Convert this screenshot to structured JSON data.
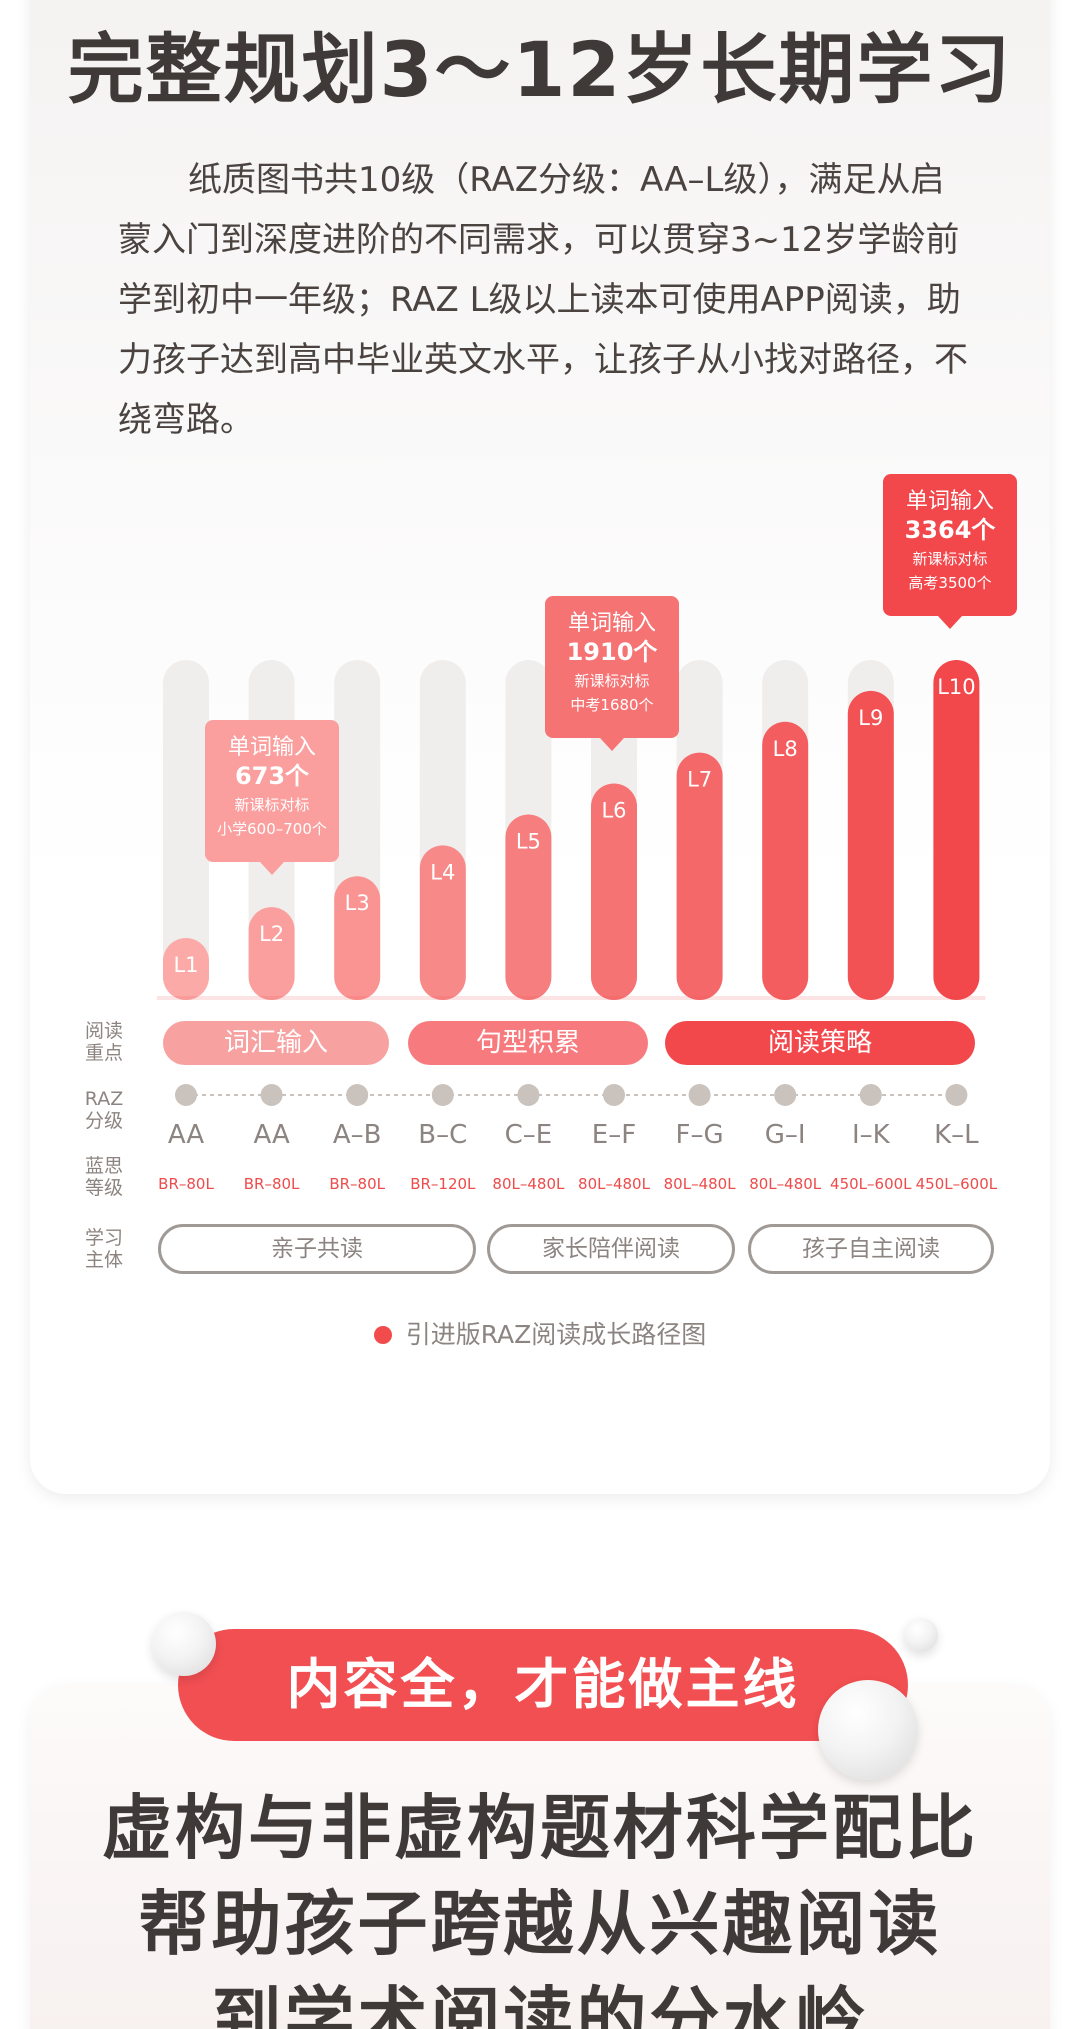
{
  "title": "完整规划3～12岁长期学习",
  "intro": "纸质图书共10级（RAZ分级：AA–L级），满足从启蒙入门到深度进阶的不同需求，可以贯穿3~12岁学龄前学到初中一年级；RAZ L级以上读本可使用APP阅读，助力孩子达到高中毕业英文水平，让孩子从小找对路径，不绕弯路。",
  "row_labels": {
    "focus": "阅读\n重点",
    "raz": "RAZ\n分级",
    "lexile": "蓝思\n等级",
    "subject": "学习\n主体"
  },
  "chart_data": {
    "type": "bar",
    "categories": [
      "L1",
      "L2",
      "L3",
      "L4",
      "L5",
      "L6",
      "L7",
      "L8",
      "L9",
      "L10"
    ],
    "values": [
      1,
      2,
      3,
      4,
      5,
      6,
      7,
      8,
      9,
      10
    ],
    "ylim": [
      0,
      10
    ],
    "raz_levels": [
      "AA",
      "AA",
      "A–B",
      "B–C",
      "C–E",
      "E–F",
      "F–G",
      "G–I",
      "I–K",
      "K–L"
    ],
    "lexile": [
      "BR–80L",
      "BR–80L",
      "BR–80L",
      "BR–120L",
      "80L–480L",
      "80L–480L",
      "80L–480L",
      "80L–480L",
      "450L–600L",
      "450L–600L"
    ],
    "callouts": [
      {
        "level": "L2",
        "line1": "单词输入",
        "line2": "673个",
        "line3": "新课标对标",
        "line4": "小学600–700个"
      },
      {
        "level": "L6",
        "line1": "单词输入",
        "line2": "1910个",
        "line3": "新课标对标",
        "line4": "中考1680个"
      },
      {
        "level": "L10",
        "line1": "单词输入",
        "line2": "3364个",
        "line3": "新课标对标",
        "line4": "高考3500个"
      }
    ],
    "reading_focus": [
      "词汇输入",
      "句型积累",
      "阅读策略"
    ],
    "subjects": [
      "亲子共读",
      "家长陪伴阅读",
      "孩子自主阅读"
    ],
    "colors": {
      "light": "#fbaaa8",
      "dark": "#f2474b",
      "track": "#f0eeec"
    }
  },
  "caption": "引进版RAZ阅读成长路径图",
  "banner": "内容全，才能做主线",
  "headline2_lines": [
    "虚构与非虚构题材科学配比",
    "帮助孩子跨越从兴趣阅读",
    "到学术阅读的分水岭"
  ]
}
